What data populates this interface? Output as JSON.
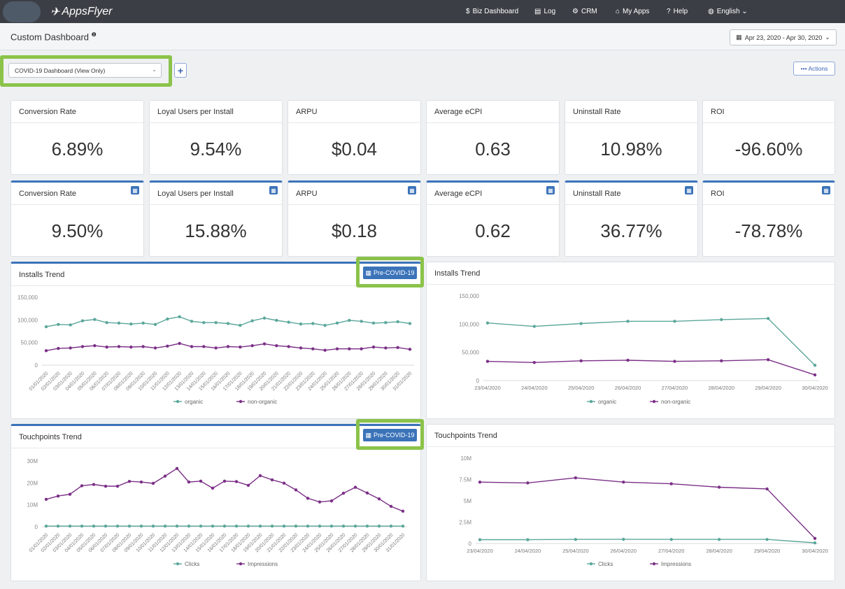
{
  "brand": {
    "name": "AppsFlyer"
  },
  "nav": [
    {
      "icon": "$",
      "label": "Biz Dashboard"
    },
    {
      "icon": "▤",
      "label": "Log"
    },
    {
      "icon": "⚙",
      "label": "CRM"
    },
    {
      "icon": "⌂",
      "label": "My Apps"
    },
    {
      "icon": "?",
      "label": "Help"
    },
    {
      "icon": "◍",
      "label": "English ⌄"
    }
  ],
  "page": {
    "title": "Custom Dashboard",
    "info": "❶",
    "date_range": "Apr 23, 2020 - Apr 30, 2020"
  },
  "dashboard_select": {
    "value": "COVID-19 Dashboard (View Only)"
  },
  "toolbar": {
    "plus": "+",
    "actions": "••• Actions"
  },
  "kpi_row1": [
    {
      "label": "Conversion Rate",
      "value": "6.89%"
    },
    {
      "label": "Loyal Users per Install",
      "value": "9.54%"
    },
    {
      "label": "ARPU",
      "value": "$0.04"
    },
    {
      "label": "Average eCPI",
      "value": "0.63"
    },
    {
      "label": "Uninstall Rate",
      "value": "10.98%"
    },
    {
      "label": "ROI",
      "value": "-96.60%"
    }
  ],
  "kpi_row2": [
    {
      "label": "Conversion Rate",
      "value": "9.50%"
    },
    {
      "label": "Loyal Users per Install",
      "value": "15.88%"
    },
    {
      "label": "ARPU",
      "value": "$0.18"
    },
    {
      "label": "Average eCPI",
      "value": "0.62"
    },
    {
      "label": "Uninstall Rate",
      "value": "36.77%"
    },
    {
      "label": "ROI",
      "value": "-78.78%"
    }
  ],
  "badge": {
    "label": "Pre-COVID-19"
  },
  "chart_data": [
    {
      "type": "line",
      "title": "Installs Trend",
      "categories": [
        "01/01/2020",
        "02/01/2020",
        "03/01/2020",
        "04/01/2020",
        "05/01/2020",
        "06/01/2020",
        "07/01/2020",
        "08/01/2020",
        "09/01/2020",
        "10/01/2020",
        "11/01/2020",
        "12/01/2020",
        "13/01/2020",
        "14/01/2020",
        "15/01/2020",
        "16/01/2020",
        "17/01/2020",
        "18/01/2020",
        "19/01/2020",
        "20/01/2020",
        "21/01/2020",
        "22/01/2020",
        "23/01/2020",
        "24/01/2020",
        "25/01/2020",
        "26/01/2020",
        "27/01/2020",
        "28/01/2020",
        "29/01/2020",
        "30/01/2020",
        "31/01/2020"
      ],
      "yticks": [
        "0",
        "50,000",
        "100,000",
        "150,000"
      ],
      "ylim": [
        0,
        150000
      ],
      "series": [
        {
          "name": "organic",
          "color": "#5ba79b",
          "values": [
            85000,
            90000,
            89000,
            98000,
            101000,
            94000,
            93000,
            91000,
            93000,
            90000,
            102000,
            107000,
            97000,
            94000,
            94000,
            92000,
            88000,
            98000,
            104000,
            99000,
            95000,
            91000,
            92000,
            88000,
            93000,
            99000,
            97000,
            93000,
            94000,
            96000,
            92000
          ]
        },
        {
          "name": "non-organic",
          "color": "#7b2f87",
          "values": [
            32000,
            37000,
            38000,
            41000,
            43000,
            40000,
            41000,
            40000,
            41000,
            38000,
            42000,
            48000,
            41000,
            41000,
            38000,
            41000,
            40000,
            43000,
            47000,
            43000,
            41000,
            38000,
            36000,
            33000,
            36000,
            36000,
            36000,
            40000,
            38000,
            39000,
            35000
          ]
        }
      ]
    },
    {
      "type": "line",
      "title": "Installs Trend",
      "categories": [
        "23/04/2020",
        "24/04/2020",
        "25/04/2020",
        "26/04/2020",
        "27/04/2020",
        "28/04/2020",
        "29/04/2020",
        "30/04/2020"
      ],
      "yticks": [
        "0",
        "50,000",
        "100,000",
        "150,000"
      ],
      "ylim": [
        0,
        150000
      ],
      "series": [
        {
          "name": "organic",
          "color": "#5ba79b",
          "values": [
            102000,
            96000,
            101000,
            105000,
            105000,
            108000,
            110000,
            27000
          ]
        },
        {
          "name": "non-organic",
          "color": "#7b2f87",
          "values": [
            34000,
            32000,
            35000,
            36000,
            34000,
            35000,
            37000,
            10000
          ]
        }
      ]
    },
    {
      "type": "line",
      "title": "Touchpoints Trend",
      "categories": [
        "01/01/2020",
        "02/01/2020",
        "03/01/2020",
        "04/01/2020",
        "05/01/2020",
        "06/01/2020",
        "07/01/2020",
        "08/01/2020",
        "09/01/2020",
        "10/01/2020",
        "11/01/2020",
        "12/01/2020",
        "13/01/2020",
        "14/01/2020",
        "15/01/2020",
        "16/01/2020",
        "17/01/2020",
        "18/01/2020",
        "19/01/2020",
        "20/01/2020",
        "21/01/2020",
        "22/01/2020",
        "23/01/2020",
        "24/01/2020",
        "25/01/2020",
        "26/01/2020",
        "27/01/2020",
        "28/01/2020",
        "29/01/2020",
        "30/01/2020",
        "31/01/2020"
      ],
      "yticks": [
        "0",
        "10M",
        "20M",
        "30M"
      ],
      "ylim": [
        0,
        30000000
      ],
      "series": [
        {
          "name": "Clicks",
          "color": "#5ba79b",
          "values": [
            300000,
            300000,
            300000,
            300000,
            300000,
            300000,
            300000,
            300000,
            300000,
            300000,
            300000,
            300000,
            300000,
            300000,
            300000,
            300000,
            300000,
            300000,
            300000,
            300000,
            300000,
            300000,
            300000,
            300000,
            300000,
            300000,
            300000,
            300000,
            300000,
            300000,
            300000
          ]
        },
        {
          "name": "Impressions",
          "color": "#7b2f87",
          "values": [
            12500000,
            14000000,
            14800000,
            18700000,
            19300000,
            18500000,
            18500000,
            20700000,
            20400000,
            19800000,
            23100000,
            26600000,
            20400000,
            20800000,
            17600000,
            20800000,
            20600000,
            18900000,
            23300000,
            21400000,
            19900000,
            16800000,
            13000000,
            11300000,
            11800000,
            15300000,
            18000000,
            15400000,
            12700000,
            9300000,
            7100000
          ]
        }
      ]
    },
    {
      "type": "line",
      "title": "Touchpoints Trend",
      "categories": [
        "23/04/2020",
        "24/04/2020",
        "25/04/2020",
        "26/04/2020",
        "27/04/2020",
        "28/04/2020",
        "29/04/2020",
        "30/04/2020"
      ],
      "yticks": [
        "0",
        "2.5M",
        "5M",
        "7.5M",
        "10M"
      ],
      "ylim": [
        0,
        10000000
      ],
      "series": [
        {
          "name": "Clicks",
          "color": "#5ba79b",
          "values": [
            450000,
            450000,
            480000,
            500000,
            480000,
            480000,
            480000,
            80000
          ]
        },
        {
          "name": "Impressions",
          "color": "#7b2f87",
          "values": [
            7200000,
            7100000,
            7700000,
            7200000,
            7000000,
            6600000,
            6400000,
            600000
          ]
        }
      ]
    }
  ]
}
